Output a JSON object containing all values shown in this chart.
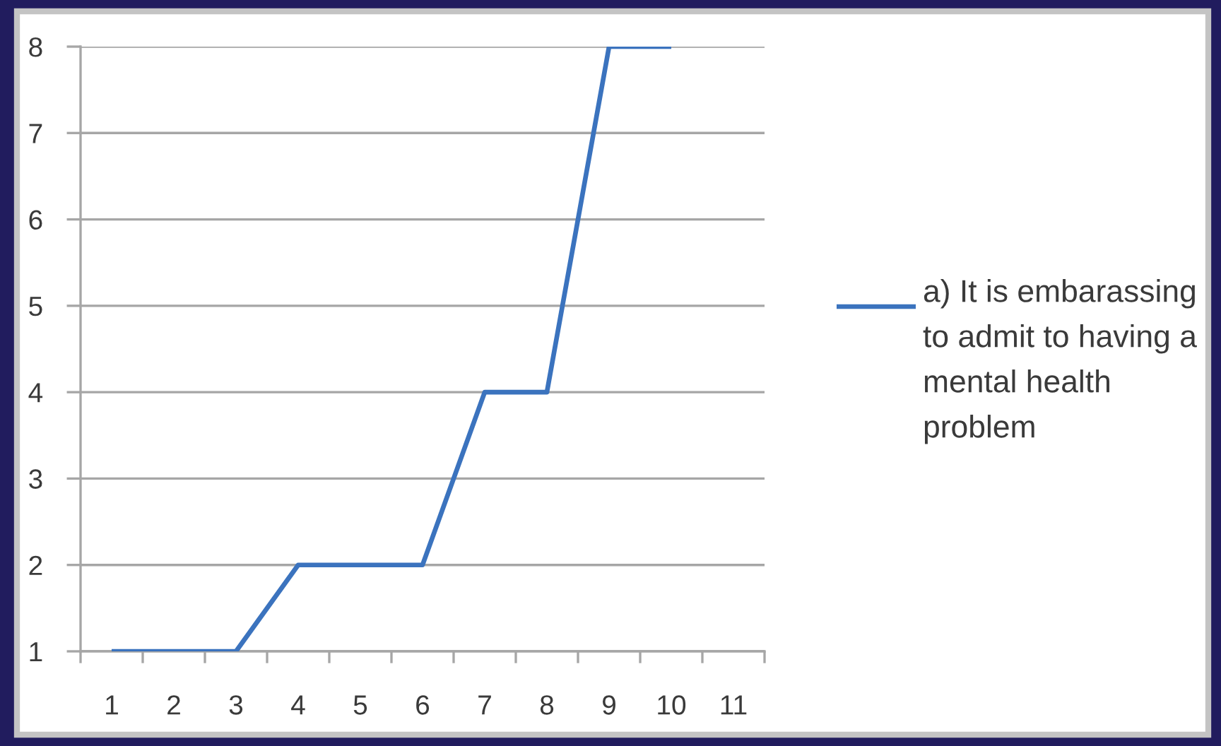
{
  "chart_data": {
    "type": "line",
    "categories": [
      "1",
      "2",
      "3",
      "4",
      "5",
      "6",
      "7",
      "8",
      "9",
      "10",
      "11"
    ],
    "series": [
      {
        "name": "a) It is embarassing to admit to having a mental health problem",
        "color": "#3b73be",
        "values": [
          1,
          1,
          1,
          2,
          2,
          2,
          4,
          4,
          8,
          8,
          null
        ]
      }
    ],
    "ylim": [
      1,
      8
    ],
    "yticks": [
      1,
      2,
      3,
      4,
      5,
      6,
      7,
      8
    ],
    "grid": "y",
    "legend": "right",
    "line_style": "solid"
  }
}
